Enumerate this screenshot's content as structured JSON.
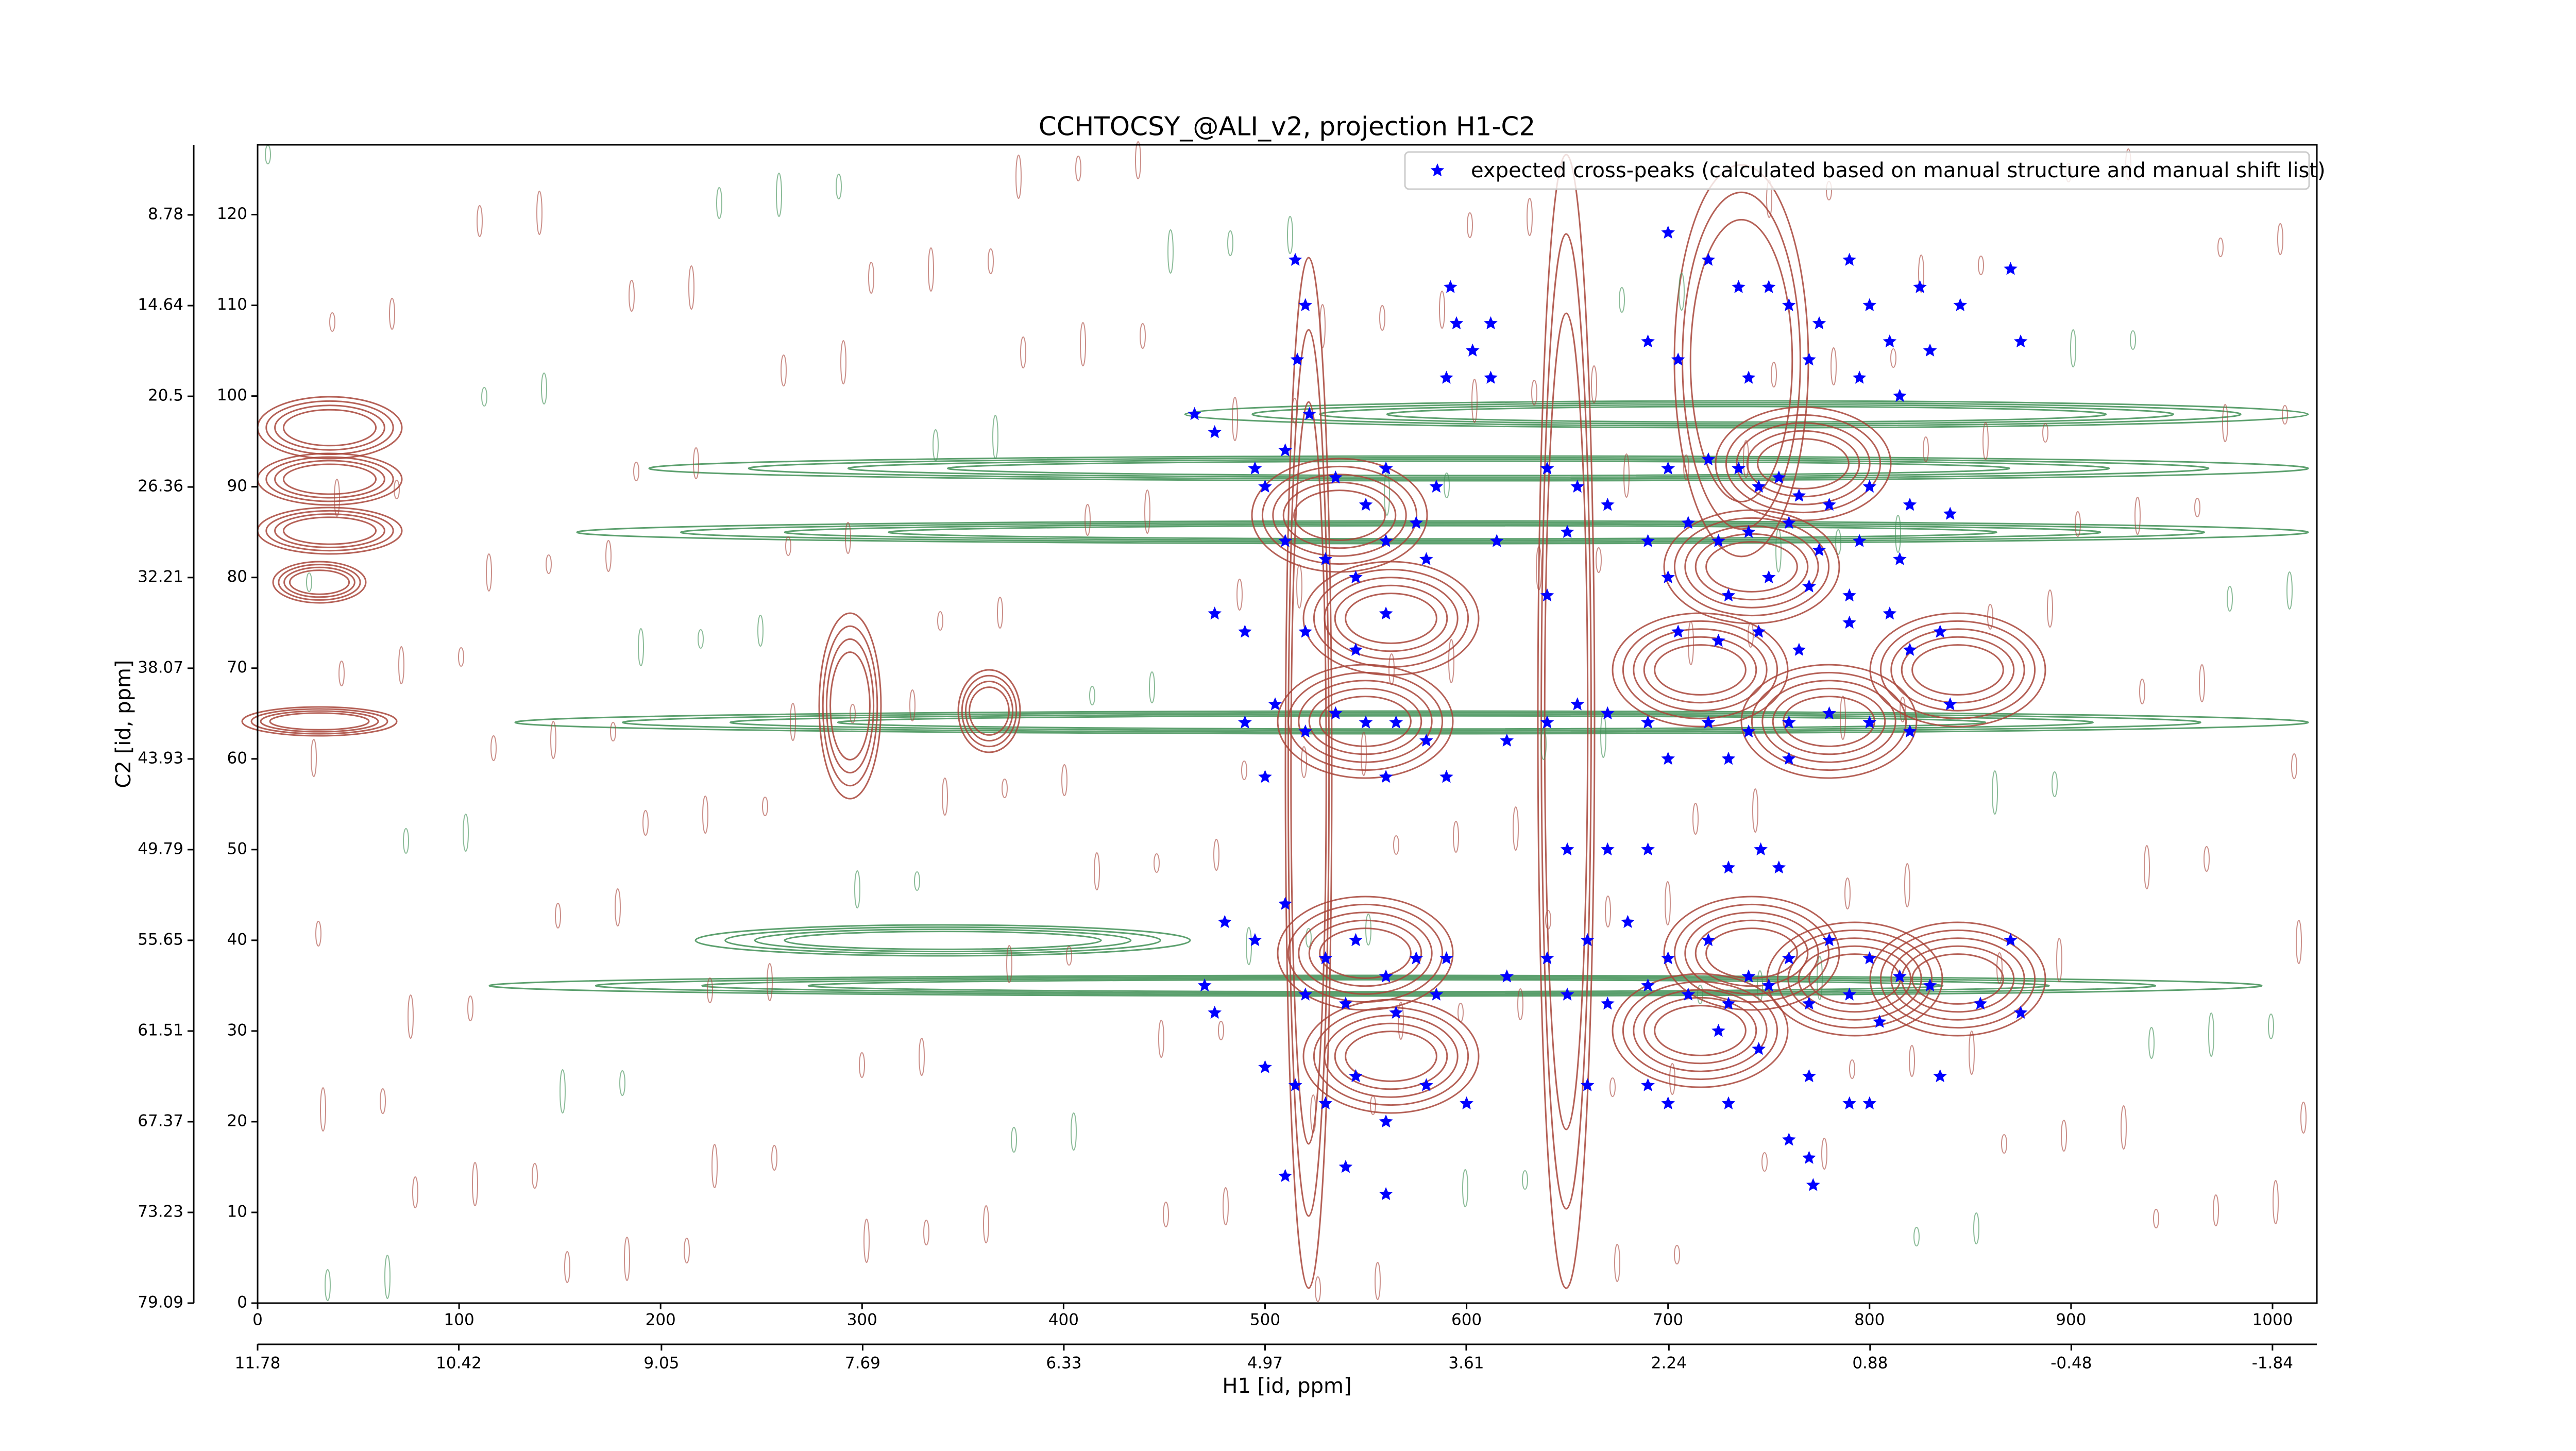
{
  "chart_data": {
    "type": "scatter",
    "title": "CCHTOCSY_@ALI_v2, projection H1-C2",
    "x2label": "H1 [id, ppm]",
    "y2label": "C2 [id, ppm]",
    "xlim": [
      0,
      1022
    ],
    "xticks": [
      0,
      100,
      200,
      300,
      400,
      500,
      600,
      700,
      800,
      900,
      1000
    ],
    "ylim": [
      0,
      127.7
    ],
    "yticks": [
      0,
      10,
      20,
      30,
      40,
      50,
      60,
      70,
      80,
      90,
      100,
      110,
      120
    ],
    "x2lim": [
      11.78,
      -2.14
    ],
    "x2ticks": [
      11.78,
      10.42,
      9.05,
      7.69,
      6.33,
      4.97,
      3.61,
      2.24,
      0.88,
      -0.48,
      -1.84
    ],
    "y2lim": [
      79.09,
      4.25
    ],
    "y2ticks": [
      79.09,
      73.23,
      67.37,
      61.51,
      55.65,
      49.79,
      43.93,
      38.07,
      32.21,
      26.36,
      20.5,
      14.64,
      8.78
    ],
    "legend": "upper right",
    "series": [
      {
        "name": "expected cross-peaks (calculated based on manual structure and manual shift list)",
        "color": "#0000ff",
        "x": [
          515,
          520,
          516,
          522,
          590,
          592,
          595,
          603,
          612,
          612,
          700,
          720,
          735,
          750,
          760,
          775,
          790,
          800,
          810,
          825,
          830,
          845,
          870,
          875,
          690,
          705,
          740,
          770,
          795,
          815,
          465,
          475,
          495,
          500,
          510,
          535,
          550,
          560,
          575,
          585,
          615,
          640,
          655,
          670,
          700,
          720,
          735,
          745,
          755,
          765,
          780,
          800,
          820,
          840,
          510,
          530,
          545,
          560,
          580,
          650,
          690,
          710,
          725,
          740,
          760,
          775,
          795,
          815,
          640,
          700,
          730,
          750,
          770,
          790,
          810,
          475,
          490,
          520,
          545,
          560,
          705,
          725,
          745,
          765,
          790,
          820,
          835,
          490,
          505,
          520,
          535,
          550,
          565,
          580,
          620,
          640,
          655,
          670,
          690,
          720,
          740,
          760,
          780,
          800,
          820,
          840,
          500,
          560,
          590,
          700,
          730,
          760,
          650,
          670,
          690,
          730,
          746,
          755,
          480,
          495,
          510,
          530,
          545,
          560,
          575,
          590,
          470,
          520,
          540,
          565,
          585,
          620,
          640,
          660,
          680,
          700,
          720,
          740,
          760,
          780,
          800,
          815,
          830,
          650,
          670,
          690,
          710,
          730,
          750,
          770,
          790,
          805,
          725,
          745,
          475,
          855,
          870,
          875,
          500,
          515,
          530,
          545,
          560,
          580,
          600,
          660,
          690,
          700,
          730,
          770,
          790,
          800,
          835,
          540,
          560,
          510,
          770,
          772,
          760
        ],
        "values": [
          115,
          110,
          104,
          98,
          102,
          112,
          108,
          105,
          108,
          102,
          118,
          115,
          112,
          112,
          110,
          108,
          115,
          110,
          106,
          112,
          105,
          110,
          114,
          106,
          106,
          104,
          102,
          104,
          102,
          100,
          98,
          96,
          92,
          90,
          94,
          91,
          88,
          92,
          86,
          90,
          84,
          92,
          90,
          88,
          92,
          93,
          92,
          90,
          91,
          89,
          88,
          90,
          88,
          87,
          84,
          82,
          80,
          84,
          82,
          85,
          84,
          86,
          84,
          85,
          86,
          83,
          84,
          82,
          78,
          80,
          78,
          80,
          79,
          78,
          76,
          76,
          74,
          74,
          72,
          76,
          74,
          73,
          74,
          72,
          75,
          72,
          74,
          64,
          66,
          63,
          65,
          64,
          64,
          62,
          62,
          64,
          66,
          65,
          64,
          64,
          63,
          64,
          65,
          64,
          63,
          66,
          58,
          58,
          58,
          60,
          60,
          60,
          50,
          50,
          50,
          48,
          50,
          48,
          42,
          40,
          44,
          38,
          40,
          36,
          38,
          38,
          35,
          34,
          33,
          32,
          34,
          36,
          38,
          40,
          42,
          38,
          40,
          36,
          38,
          40,
          38,
          36,
          35,
          34,
          33,
          35,
          34,
          33,
          35,
          33,
          34,
          31,
          30,
          28,
          32,
          33,
          40,
          32,
          26,
          24,
          22,
          25,
          20,
          24,
          22,
          24,
          24,
          22,
          22,
          25,
          22,
          22,
          25,
          15,
          12,
          14,
          16,
          13,
          18
        ]
      }
    ]
  }
}
